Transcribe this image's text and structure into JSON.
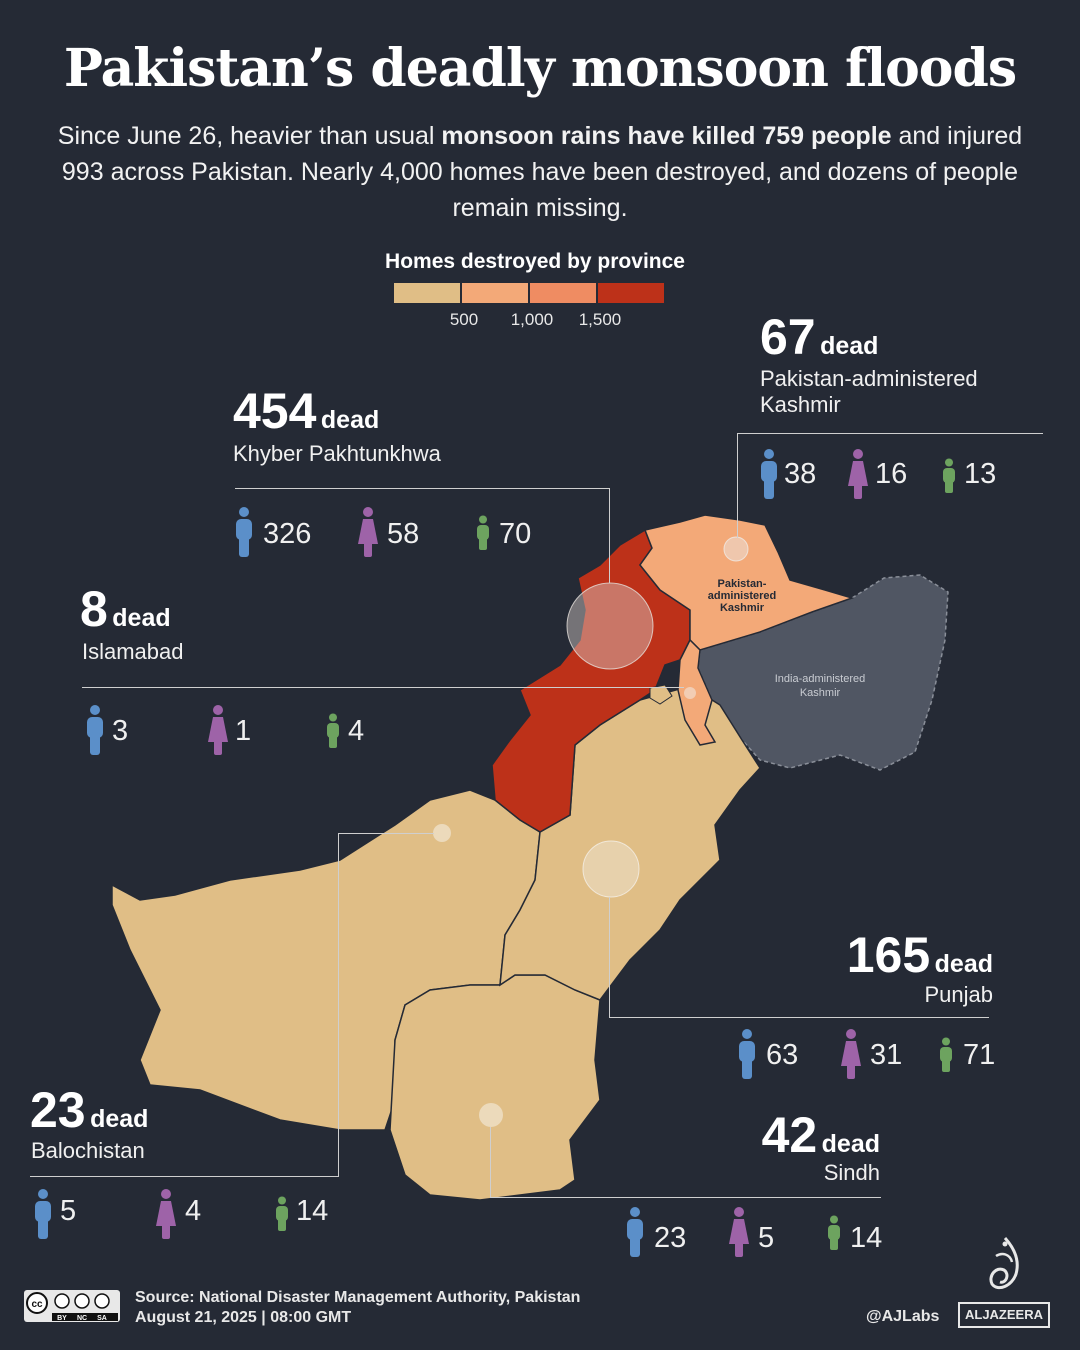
{
  "title": "Pakistan’s deadly monsoon floods",
  "intro": {
    "part1": "Since June 26, heavier than usual ",
    "bold": "monsoon rains have killed 759 people",
    "part2": " and injured 993 across Pakistan. Nearly 4,000 homes have been destroyed, and dozens of people remain missing."
  },
  "legend": {
    "title": "Homes destroyed by province",
    "ticks": [
      "500",
      "1,000",
      "1,500"
    ],
    "colors": [
      "#e0be86",
      "#f3a978",
      "#ef8c62",
      "#bd3119"
    ]
  },
  "person_colors": {
    "man": "#5b8fc9",
    "woman": "#9e63a8",
    "child": "#6da35f"
  },
  "map_labels": {
    "pak_kashmir": [
      "Pakistan-",
      "administered",
      "Kashmir"
    ],
    "india_kashmir": [
      "India-administered",
      "Kashmir"
    ]
  },
  "provinces": {
    "kashmir": {
      "dead_num": "67",
      "dead_word": "dead",
      "name_line1": "Pakistan-administered",
      "name_line2": "Kashmir",
      "men": "38",
      "women": "16",
      "children": "13",
      "fill": "#f3a978"
    },
    "kp": {
      "dead_num": "454",
      "dead_word": "dead",
      "name": "Khyber Pakhtunkhwa",
      "men": "326",
      "women": "58",
      "children": "70",
      "fill": "#bd3119"
    },
    "islamabad": {
      "dead_num": "8",
      "dead_word": "dead",
      "name": "Islamabad",
      "men": "3",
      "women": "1",
      "children": "4",
      "fill": "#e0be86"
    },
    "punjab": {
      "dead_num": "165",
      "dead_word": "dead",
      "name": "Punjab",
      "men": "63",
      "women": "31",
      "children": "71",
      "fill": "#e0be86"
    },
    "balochistan": {
      "dead_num": "23",
      "dead_word": "dead",
      "name": "Balochistan",
      "men": "5",
      "women": "4",
      "children": "14",
      "fill": "#e0be86"
    },
    "sindh": {
      "dead_num": "42",
      "dead_word": "dead",
      "name": "Sindh",
      "men": "23",
      "women": "5",
      "children": "14",
      "fill": "#e0be86"
    }
  },
  "footer": {
    "source": "Source:  National Disaster Management Authority, Pakistan",
    "date": "August 21, 2025  |  08:00 GMT",
    "handle": "@AJLabs",
    "brand": "ALJAZEERA",
    "license": [
      "BY",
      "NC",
      "SA"
    ]
  }
}
